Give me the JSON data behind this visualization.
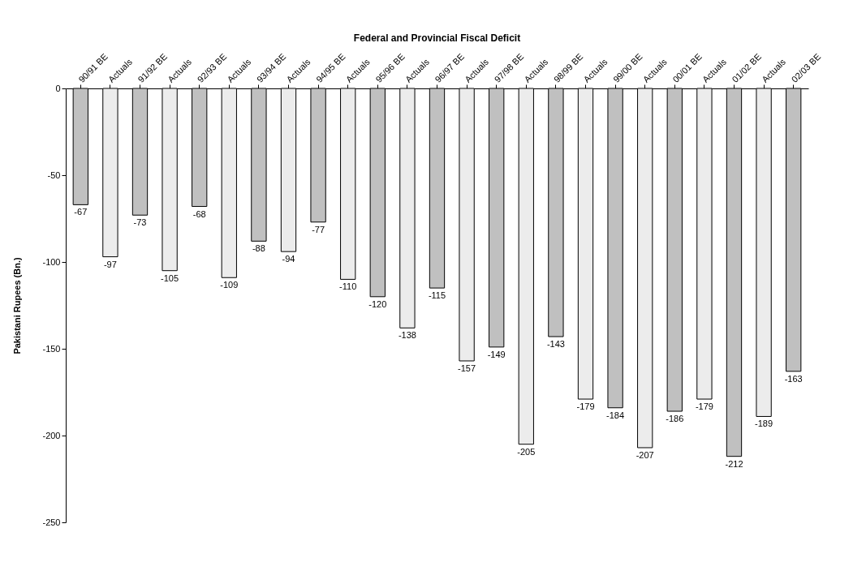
{
  "chart_data": {
    "type": "bar",
    "title": "Federal and Provincial Fiscal Deficit",
    "ylabel": "Pakistani Rupees (Bn.)",
    "categories": [
      "90/91 BE",
      "Actuals",
      "91/92 BE",
      "Actuals",
      "92/93 BE",
      "Actuals",
      "93/94 BE",
      "Actuals",
      "94/95 BE",
      "Actuals",
      "95/96 BE",
      "Actuals",
      "96/97 BE",
      "Actuals",
      "97/98 BE",
      "Actuals",
      "98/99 BE",
      "Actuals",
      "99/00 BE",
      "Actuals",
      "00/01 BE",
      "Actuals",
      "01/02 BE",
      "Actuals",
      "02/03 BE"
    ],
    "values": [
      -67,
      -97,
      -73,
      -105,
      -68,
      -109,
      -88,
      -94,
      -77,
      -110,
      -120,
      -138,
      -115,
      -157,
      -149,
      -205,
      -143,
      -179,
      -184,
      -207,
      -186,
      -179,
      -212,
      -189,
      -163
    ],
    "colors": [
      "#c0c0c0",
      "#ececec",
      "#c0c0c0",
      "#ececec",
      "#c0c0c0",
      "#ececec",
      "#c0c0c0",
      "#ececec",
      "#c0c0c0",
      "#ececec",
      "#c0c0c0",
      "#ececec",
      "#c0c0c0",
      "#ececec",
      "#c0c0c0",
      "#ececec",
      "#c0c0c0",
      "#ececec",
      "#c0c0c0",
      "#ececec",
      "#c0c0c0",
      "#ececec",
      "#c0c0c0",
      "#ececec",
      "#c0c0c0"
    ],
    "ylim": [
      -250,
      0
    ],
    "yticks": [
      -250,
      -200,
      -150,
      -100,
      -50,
      0
    ],
    "data_labels": true,
    "grid": false
  }
}
